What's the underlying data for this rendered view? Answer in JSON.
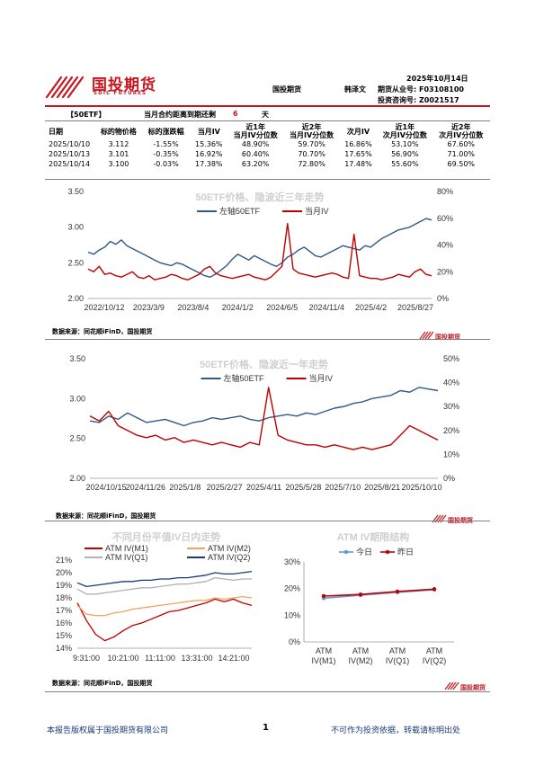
{
  "header": {
    "company": "国投期货",
    "company_en": "SDIC FUTURES",
    "date": "2025年10月14日",
    "dept": "国投期货",
    "analyst": "韩泽文",
    "license1": "期货从业号: F03108100",
    "license2": "投资咨询号: Z0021517"
  },
  "summary": {
    "product": "【50ETF】",
    "expiry_label": "当月合约距离到期还剩",
    "expiry_days": "6",
    "expiry_unit": "天"
  },
  "table": {
    "columns": [
      "日期",
      "标的物价格",
      "标的涨跌幅",
      "当月IV",
      "近1年\n当月IV分位数",
      "近2年\n当月IV分位数",
      "次月IV",
      "近1年\n次月IV分位数",
      "近2年\n次月IV分位数"
    ],
    "rows": [
      [
        "2025/10/10",
        "3.112",
        "-1.55%",
        "15.36%",
        "48.90%",
        "59.70%",
        "16.86%",
        "53.10%",
        "67.60%"
      ],
      [
        "2025/10/13",
        "3.101",
        "-0.35%",
        "16.92%",
        "60.40%",
        "70.70%",
        "17.65%",
        "56.90%",
        "71.00%"
      ],
      [
        "2025/10/14",
        "3.100",
        "-0.03%",
        "17.38%",
        "63.20%",
        "72.80%",
        "17.48%",
        "55.60%",
        "69.50%"
      ]
    ]
  },
  "chart_data": [
    {
      "type": "line",
      "title": "50ETF价格、隐波近三年走势",
      "x_tick_labels": [
        "2022/10/12",
        "2023/3/9",
        "2023/8/4",
        "2024/1/2",
        "2024/6/5",
        "2024/11/4",
        "2025/4/2",
        "2025/8/27"
      ],
      "y_left": {
        "ticks": [
          "2.00",
          "2.50",
          "3.00",
          "3.50"
        ],
        "range": [
          2.0,
          3.5
        ]
      },
      "y_right": {
        "ticks": [
          "0%",
          "20%",
          "40%",
          "60%",
          "80%"
        ],
        "range": [
          0,
          80
        ]
      },
      "series": [
        {
          "name": "左轴50ETF",
          "color": "#2e5a87",
          "axis": "left",
          "values": [
            2.65,
            2.62,
            2.68,
            2.72,
            2.8,
            2.76,
            2.82,
            2.74,
            2.7,
            2.66,
            2.62,
            2.58,
            2.54,
            2.5,
            2.48,
            2.46,
            2.5,
            2.48,
            2.44,
            2.4,
            2.36,
            2.32,
            2.3,
            2.34,
            2.4,
            2.46,
            2.55,
            2.62,
            2.58,
            2.54,
            2.6,
            2.56,
            2.52,
            2.48,
            2.45,
            2.5,
            2.58,
            2.62,
            2.68,
            2.72,
            2.66,
            2.6,
            2.58,
            2.62,
            2.66,
            2.7,
            2.74,
            2.72,
            2.7,
            2.68,
            2.74,
            2.72,
            2.78,
            2.84,
            2.88,
            2.92,
            2.96,
            2.98,
            3.0,
            3.04,
            3.08,
            3.12,
            3.1
          ]
        },
        {
          "name": "当月IV",
          "color": "#c00000",
          "axis": "right",
          "values": [
            22,
            20,
            24,
            18,
            19,
            17,
            16,
            18,
            20,
            16,
            15,
            17,
            14,
            15,
            16,
            18,
            17,
            15,
            14,
            16,
            18,
            22,
            24,
            19,
            17,
            16,
            15,
            16,
            17,
            18,
            16,
            15,
            14,
            16,
            20,
            24,
            56,
            22,
            19,
            18,
            17,
            16,
            17,
            18,
            19,
            18,
            16,
            15,
            48,
            17,
            16,
            15,
            15,
            14,
            15,
            16,
            18,
            17,
            16,
            20,
            22,
            18,
            17
          ]
        }
      ]
    },
    {
      "type": "line",
      "title": "50ETF价格、隐波近一年走势",
      "x_tick_labels": [
        "2024/10/15",
        "2024/11/26",
        "2025/1/8",
        "2025/2/27",
        "2025/4/11",
        "2025/5/28",
        "2025/7/10",
        "2025/8/21",
        "2025/10/10"
      ],
      "y_left": {
        "ticks": [
          "2.00",
          "2.50",
          "3.00",
          "3.50"
        ],
        "range": [
          2.0,
          3.5
        ]
      },
      "y_right": {
        "ticks": [
          "0%",
          "10%",
          "20%",
          "30%",
          "40%",
          "50%"
        ],
        "range": [
          0,
          50
        ]
      },
      "series": [
        {
          "name": "左轴50ETF",
          "color": "#2e5a87",
          "axis": "left",
          "values": [
            2.72,
            2.7,
            2.78,
            2.74,
            2.82,
            2.76,
            2.7,
            2.72,
            2.74,
            2.7,
            2.66,
            2.7,
            2.72,
            2.76,
            2.74,
            2.76,
            2.78,
            2.74,
            2.72,
            2.76,
            2.78,
            2.8,
            2.78,
            2.82,
            2.8,
            2.84,
            2.88,
            2.9,
            2.94,
            2.96,
            3.0,
            3.02,
            3.04,
            3.1,
            3.08,
            3.14,
            3.12,
            3.1
          ]
        },
        {
          "name": "当月IV",
          "color": "#c00000",
          "axis": "right",
          "values": [
            26,
            24,
            28,
            22,
            20,
            18,
            17,
            18,
            16,
            17,
            15,
            16,
            15,
            14,
            15,
            14,
            13,
            15,
            14,
            38,
            18,
            16,
            15,
            14,
            14,
            13,
            14,
            13,
            12,
            13,
            12,
            13,
            14,
            18,
            22,
            20,
            18,
            16
          ]
        }
      ]
    },
    {
      "type": "line",
      "title": "不同月份平值IV日内走势",
      "x_tick_labels": [
        "9:31:00",
        "10:21:00",
        "11:11:00",
        "13:31:00",
        "14:21:00"
      ],
      "y_ticks": [
        "14%",
        "15%",
        "16%",
        "17%",
        "18%",
        "19%",
        "20%",
        "21%"
      ],
      "ylim": [
        14,
        21
      ],
      "series": [
        {
          "name": "ATM IV(M1)",
          "color": "#c00000",
          "values": [
            17.6,
            16.2,
            15.1,
            14.6,
            14.9,
            15.4,
            15.8,
            16.0,
            16.3,
            16.6,
            16.9,
            17.0,
            17.2,
            17.4,
            17.6,
            17.9,
            17.7,
            17.9,
            17.6,
            17.4
          ]
        },
        {
          "name": "ATM IV(M2)",
          "color": "#f4a460",
          "values": [
            17.4,
            16.7,
            16.6,
            16.6,
            16.8,
            16.9,
            17.1,
            17.2,
            17.3,
            17.4,
            17.5,
            17.6,
            17.7,
            17.8,
            17.8,
            18.0,
            17.9,
            18.0,
            18.1,
            18.0
          ]
        },
        {
          "name": "ATM IV(Q1)",
          "color": "#b0b0b0",
          "values": [
            18.7,
            18.3,
            18.3,
            18.4,
            18.5,
            18.6,
            18.7,
            18.8,
            18.8,
            18.9,
            19.0,
            19.1,
            19.1,
            19.2,
            19.3,
            19.6,
            19.5,
            19.4,
            19.5,
            19.5
          ]
        },
        {
          "name": "ATM IV(Q2)",
          "color": "#1f3a7a",
          "values": [
            19.2,
            18.9,
            19.0,
            19.1,
            19.2,
            19.3,
            19.3,
            19.4,
            19.4,
            19.5,
            19.5,
            19.6,
            19.6,
            19.7,
            19.8,
            20.0,
            19.9,
            19.9,
            20.0,
            20.1
          ]
        }
      ]
    },
    {
      "type": "line",
      "title": "ATM IV期限结构",
      "categories": [
        "ATM\nIV(M1)",
        "ATM\nIV(M2)",
        "ATM\nIV(Q1)",
        "ATM\nIV(Q2)"
      ],
      "y_ticks": [
        "0%",
        "10%",
        "20%",
        "30%"
      ],
      "ylim": [
        0,
        30
      ],
      "series": [
        {
          "name": "今日",
          "color": "#5b9bd5",
          "values": [
            16.4,
            17.5,
            18.6,
            19.6
          ]
        },
        {
          "name": "昨日",
          "color": "#c00000",
          "values": [
            17.2,
            17.8,
            18.9,
            19.8
          ]
        }
      ]
    }
  ],
  "sources": {
    "s1": "数据来源：同花顺iFinD，国投期货",
    "s2": "数据来源：同花顺iFinD，国投期货",
    "s3": "数据来源：同花顺iFinD，国投期货"
  },
  "footer": {
    "left": "本报告版权属于国投期货有限公司",
    "page": "1",
    "right": "不可作为投资依据，转载请标明出处"
  }
}
